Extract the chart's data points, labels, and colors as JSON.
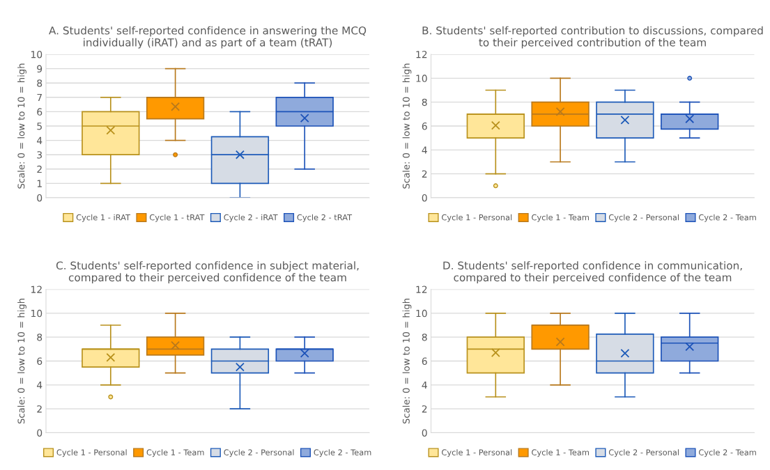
{
  "chart_data": [
    {
      "type": "box",
      "title": "A. Students' self-reported confidence in answering the MCQ individually (iRAT) and as part of a team (tRAT)",
      "ylabel": "Scale: 0 = low to 10 = high",
      "categories": [
        null
      ],
      "ylim": [
        0,
        10
      ],
      "yticks": [
        0,
        1,
        2,
        3,
        4,
        5,
        6,
        7,
        8,
        9,
        10
      ],
      "grid": "y",
      "legend": "bottom",
      "tick_labels": "y",
      "marker": "cross",
      "series": [
        {
          "name": "Cycle 1 - iRAT",
          "color": "#ffe699",
          "boxes": [
            {
              "low": 1,
              "q1": 3,
              "median": 5,
              "q3": 6,
              "high": 7,
              "mean": 4.7
            }
          ]
        },
        {
          "name": "Cycle 1 - tRAT",
          "color": "#ff9900",
          "boxes": [
            {
              "low": 4,
              "q1": 5.5,
              "median": 7,
              "q3": 7,
              "high": 9,
              "mean": 6.35,
              "outliers": [
                3
              ]
            }
          ]
        },
        {
          "name": "Cycle 2 - iRAT",
          "color": "#d6dce5",
          "boxes": [
            {
              "low": 0,
              "q1": 1,
              "median": 3,
              "q3": 4.25,
              "high": 6,
              "mean": 3
            }
          ]
        },
        {
          "name": "Cycle 2 - tRAT",
          "color": "#8faadc",
          "boxes": [
            {
              "low": 2,
              "q1": 5,
              "median": 6,
              "q3": 7,
              "high": 8,
              "mean": 5.55
            }
          ]
        }
      ]
    },
    {
      "type": "box",
      "title": "B. Students' self-reported contribution to discussions, compared to their perceived contribution of the team",
      "ylabel": "Scale: 0 = low to 10 = high",
      "categories": [
        null
      ],
      "ylim": [
        0,
        12
      ],
      "yticks": [
        0,
        2,
        4,
        6,
        8,
        10,
        12
      ],
      "grid": "y",
      "legend": "bottom",
      "tick_labels": "y",
      "marker": "cross",
      "series": [
        {
          "name": "Cycle 1 - Personal",
          "color": "#ffe699",
          "boxes": [
            {
              "low": 2,
              "q1": 5,
              "median": 7,
              "q3": 7,
              "high": 9,
              "mean": 6.05,
              "outliers": [
                1
              ]
            }
          ]
        },
        {
          "name": "Cycle 1 - Team",
          "color": "#ff9900",
          "boxes": [
            {
              "low": 3,
              "q1": 6,
              "median": 7,
              "q3": 8,
              "high": 10,
              "mean": 7.2
            }
          ]
        },
        {
          "name": "Cycle 2 - Personal",
          "color": "#d6dce5",
          "boxes": [
            {
              "low": 3,
              "q1": 5,
              "median": 7,
              "q3": 8,
              "high": 9,
              "mean": 6.5
            }
          ]
        },
        {
          "name": "Cycle 2 - Team",
          "color": "#8faadc",
          "boxes": [
            {
              "low": 5,
              "q1": 5.75,
              "median": 7,
              "q3": 7,
              "high": 8,
              "mean": 6.6,
              "outliers": [
                10
              ]
            }
          ]
        }
      ]
    },
    {
      "type": "box",
      "title": "C. Students' self-reported confidence in subject material, compared to their perceived confidence of the team",
      "ylabel": "Scale: 0 = low to 10 = high",
      "categories": [
        null
      ],
      "ylim": [
        0,
        12
      ],
      "yticks": [
        0,
        2,
        4,
        6,
        8,
        10,
        12
      ],
      "grid": "y",
      "legend": "bottom",
      "tick_labels": "y",
      "marker": "cross",
      "series": [
        {
          "name": "Cycle 1 - Personal",
          "color": "#ffe699",
          "boxes": [
            {
              "low": 4,
              "q1": 5.5,
              "median": 7,
              "q3": 7,
              "high": 9,
              "mean": 6.3,
              "outliers": [
                3
              ]
            }
          ]
        },
        {
          "name": "Cycle 1 - Team",
          "color": "#ff9900",
          "boxes": [
            {
              "low": 5,
              "q1": 6.5,
              "median": 7,
              "q3": 8,
              "high": 10,
              "mean": 7.3
            }
          ]
        },
        {
          "name": "Cycle 2 - Personal",
          "color": "#d6dce5",
          "boxes": [
            {
              "low": 2,
              "q1": 5,
              "median": 6,
              "q3": 7,
              "high": 8,
              "mean": 5.5
            }
          ]
        },
        {
          "name": "Cycle 2 - Team",
          "color": "#8faadc",
          "boxes": [
            {
              "low": 5,
              "q1": 6,
              "median": 7,
              "q3": 7,
              "high": 8,
              "mean": 6.65
            }
          ]
        }
      ]
    },
    {
      "type": "box",
      "title": "D. Students' self-reported confidence in communication, compared to their perceived confidence of the team",
      "ylabel": "Scale: 0 = low to 10 = high",
      "categories": [
        null
      ],
      "ylim": [
        0,
        12
      ],
      "yticks": [
        0,
        2,
        4,
        6,
        8,
        10,
        12
      ],
      "grid": "y",
      "legend": "bottom",
      "tick_labels": "y",
      "marker": "cross",
      "series": [
        {
          "name": "Cycle 1 - Personal",
          "color": "#ffe699",
          "boxes": [
            {
              "low": 3,
              "q1": 5,
              "median": 7,
              "q3": 8,
              "high": 10,
              "mean": 6.7
            }
          ]
        },
        {
          "name": "Cycle 1 - Team",
          "color": "#ff9900",
          "boxes": [
            {
              "low": 4,
              "q1": 7,
              "median": 9,
              "q3": 9,
              "high": 10,
              "mean": 7.6
            }
          ]
        },
        {
          "name": "Cycle 2 - Personal",
          "color": "#d6dce5",
          "boxes": [
            {
              "low": 3,
              "q1": 5,
              "median": 6,
              "q3": 8.25,
              "high": 10,
              "mean": 6.65
            }
          ]
        },
        {
          "name": "Cycle 2 - Team",
          "color": "#8faadc",
          "boxes": [
            {
              "low": 5,
              "q1": 6,
              "median": 7.5,
              "q3": 8,
              "high": 10,
              "mean": 7.2
            }
          ]
        }
      ]
    }
  ]
}
